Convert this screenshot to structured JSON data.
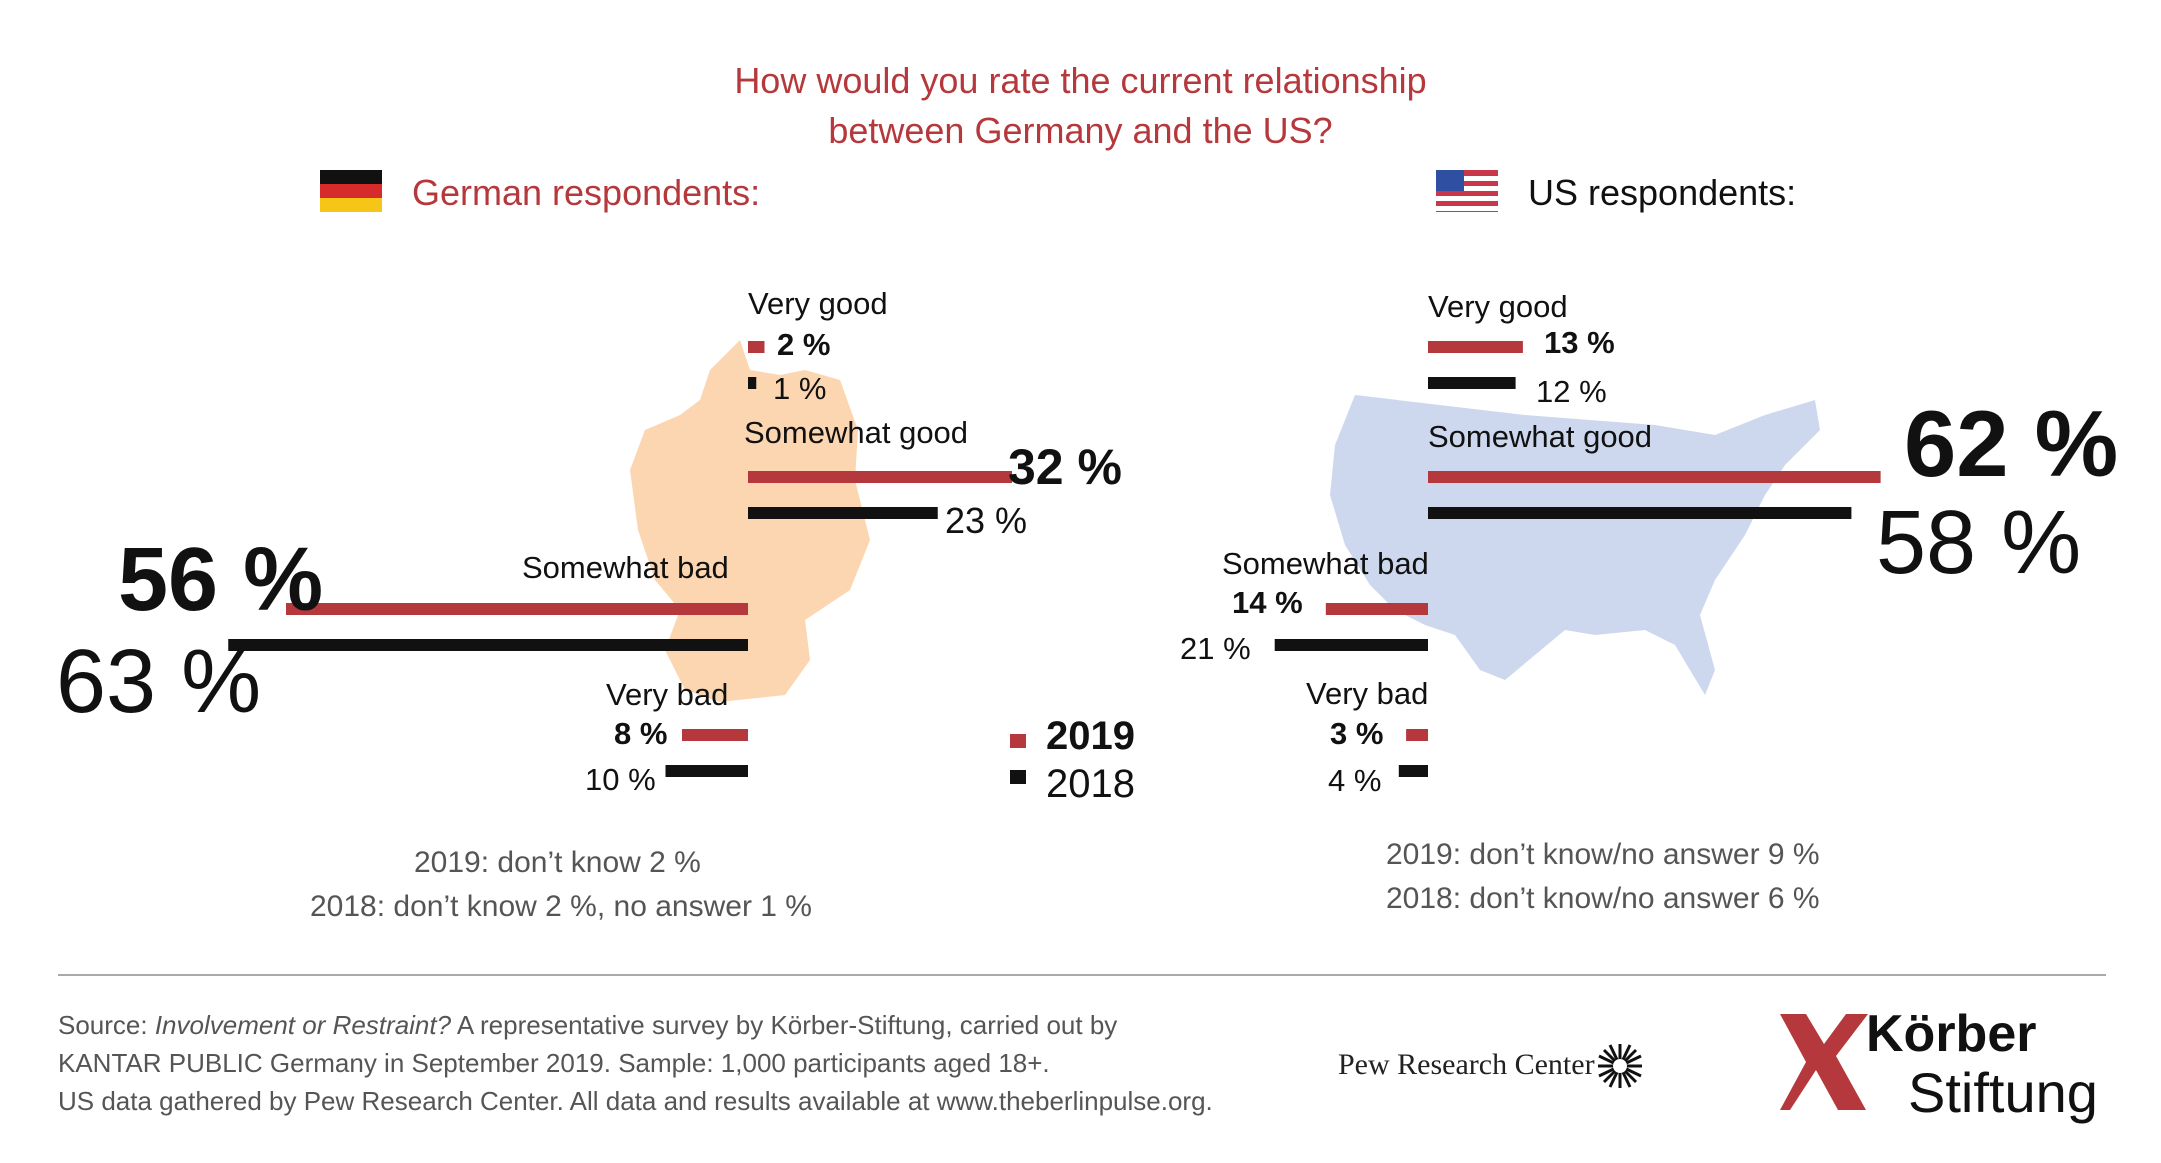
{
  "title_line1": "How would you rate the current relationship",
  "title_line2": "between Germany and the US?",
  "colors": {
    "y2019": "#b5393c",
    "y2018": "#111111",
    "germany_map": "#fbd6b0",
    "us_map": "#cdd8ef"
  },
  "legend": {
    "y2019": "2019",
    "y2018": "2018"
  },
  "chart_data": [
    {
      "type": "bar",
      "title": "German respondents:",
      "categories": [
        "Very good",
        "Somewhat good",
        "Somewhat bad",
        "Very bad"
      ],
      "series": [
        {
          "name": "2019",
          "values": [
            2,
            32,
            56,
            8
          ]
        },
        {
          "name": "2018",
          "values": [
            1,
            23,
            63,
            10
          ]
        }
      ],
      "labels_2019": [
        "2 %",
        "32 %",
        "56 %",
        "8 %"
      ],
      "labels_2018": [
        "1 %",
        "23 %",
        "63 %",
        "10 %"
      ],
      "notes": [
        "2019: don’t know 2 %",
        "2018: don’t know 2 %, no answer 1 %"
      ]
    },
    {
      "type": "bar",
      "title": "US respondents:",
      "categories": [
        "Very good",
        "Somewhat good",
        "Somewhat bad",
        "Very bad"
      ],
      "series": [
        {
          "name": "2019",
          "values": [
            13,
            62,
            14,
            3
          ]
        },
        {
          "name": "2018",
          "values": [
            12,
            58,
            21,
            4
          ]
        }
      ],
      "labels_2019": [
        "13 %",
        "62 %",
        "14 %",
        "3 %"
      ],
      "labels_2018": [
        "12 %",
        "58 %",
        "21 %",
        "4 %"
      ],
      "notes": [
        "2019: don’t know/no answer 9 %",
        "2018: don’t know/no answer 6 %"
      ]
    }
  ],
  "source": {
    "prefix": "Source: ",
    "study": "Involvement or Restraint?",
    "line1_rest": " A representative survey by Körber-Stiftung, carried out by",
    "line2": "KANTAR PUBLIC Germany in September 2019. Sample: 1,000 participants aged 18+.",
    "line3": "US data gathered by Pew Research Center. All data and results available at www.theberlinpulse.org."
  },
  "logos": {
    "pew": "Pew Research Center",
    "koerber1": "Körber",
    "koerber2": "Stiftung"
  }
}
